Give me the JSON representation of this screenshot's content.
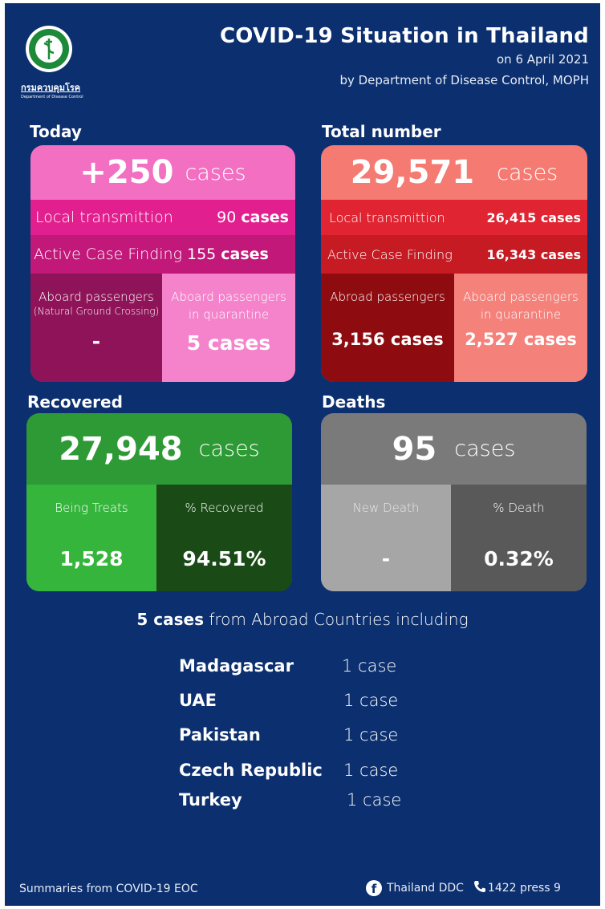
{
  "header": {
    "title": "COVID-19 Situation in Thailand",
    "date": "on  6 April 2021",
    "source": "by Department of Disease Control, MOPH",
    "logo_text": "กรมควบคุมโรค",
    "logo_subtext": "Department of Disease Control"
  },
  "today": {
    "section_label": "Today",
    "total_value": "+250",
    "total_unit": "cases",
    "local_label": "Local transmittion",
    "local_value": "90",
    "local_unit": "cases",
    "acf_label": "Active Case Finding",
    "acf_value": "155",
    "acf_unit": "cases",
    "aboard_label": "Aboard passengers",
    "aboard_sublabel": "(Natural Ground Crossing)",
    "aboard_value": "-",
    "quarantine_label_1": "Aboard passengers",
    "quarantine_label_2": "in quarantine",
    "quarantine_value": "5 cases"
  },
  "total": {
    "section_label": "Total number",
    "total_value": "29,571",
    "total_unit": "cases",
    "local_label": "Local transmittion",
    "local_value": "26,415 cases",
    "acf_label": "Active Case Finding",
    "acf_value": "16,343 cases",
    "abroad_label": "Abroad passengers",
    "abroad_value": "3,156 cases",
    "quarantine_label_1": "Aboard passengers",
    "quarantine_label_2": "in quarantine",
    "quarantine_value": "2,527 cases"
  },
  "recovered": {
    "section_label": "Recovered",
    "total_value": "27,948",
    "total_unit": "cases",
    "treats_label": "Being Treats",
    "treats_value": "1,528",
    "pct_label": "% Recovered",
    "pct_value": "94.51%"
  },
  "deaths": {
    "section_label": "Deaths",
    "total_value": "95",
    "total_unit": "cases",
    "new_label": "New Death",
    "new_value": "-",
    "pct_label": "% Death",
    "pct_value": "0.32%"
  },
  "abroad": {
    "headline_bold": "5 cases",
    "headline_rest": " from Abroad Countries including",
    "countries": [
      {
        "name": "Madagascar",
        "count": "1 case"
      },
      {
        "name": "UAE",
        "count": "1 case"
      },
      {
        "name": "Pakistan",
        "count": "1 case"
      },
      {
        "name": "Czech Republic",
        "count": "1 case"
      },
      {
        "name": "Turkey",
        "count": "1 case"
      }
    ]
  },
  "footer": {
    "summary": "Summaries  from COVID-19 EOC",
    "facebook_label": "Thailand DDC",
    "hotline": "1422 press 9"
  },
  "colors": {
    "background": "#0b2f6f",
    "today_main": "#f26fc2",
    "today_accent": "#e21f8e",
    "total_main": "#f47a72",
    "total_accent": "#e02431",
    "recovered_main": "#2e9a35",
    "recovered_dark": "#1a4a16",
    "deaths_main": "#7a7a7a",
    "deaths_dark": "#595959"
  }
}
